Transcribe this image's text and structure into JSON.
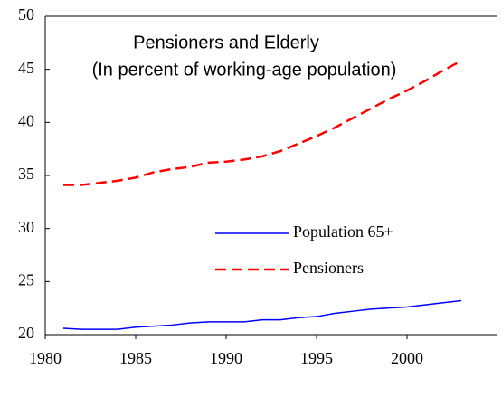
{
  "chart_data": {
    "type": "line",
    "title": "Pensioners and Elderly",
    "subtitle": "(In percent of working-age population)",
    "x": [
      1981,
      1982,
      1983,
      1984,
      1985,
      1986,
      1987,
      1988,
      1989,
      1990,
      1991,
      1992,
      1993,
      1994,
      1995,
      1996,
      1997,
      1998,
      1999,
      2000,
      2001,
      2002,
      2003
    ],
    "series": [
      {
        "name": "Population 65+",
        "color": "#0000ff",
        "dashed": false,
        "values": [
          20.6,
          20.5,
          20.5,
          20.5,
          20.7,
          20.8,
          20.9,
          21.1,
          21.2,
          21.2,
          21.2,
          21.4,
          21.4,
          21.6,
          21.7,
          22.0,
          22.2,
          22.4,
          22.5,
          22.6,
          22.8,
          23.0,
          23.2
        ]
      },
      {
        "name": "Pensioners",
        "color": "#ff0000",
        "dashed": true,
        "values": [
          34.1,
          34.1,
          34.3,
          34.5,
          34.8,
          35.3,
          35.6,
          35.8,
          36.2,
          36.3,
          36.5,
          36.8,
          37.3,
          38.0,
          38.7,
          39.5,
          40.4,
          41.3,
          42.2,
          43.0,
          43.9,
          44.9,
          45.8
        ]
      }
    ],
    "xlim": [
      1980,
      2005
    ],
    "xticks": [
      1980,
      1985,
      1990,
      1995,
      2000
    ],
    "ylim": [
      20,
      50
    ],
    "yticks": [
      20,
      25,
      30,
      35,
      40,
      45,
      50
    ],
    "grid": false
  }
}
